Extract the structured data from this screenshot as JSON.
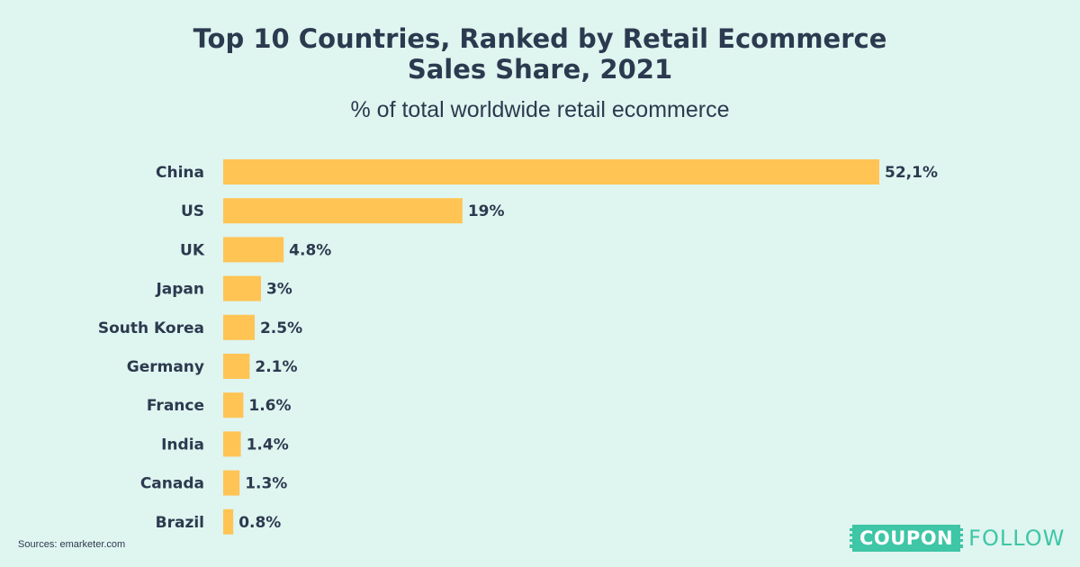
{
  "title_line1": "Top 10 Countries, Ranked by Retail Ecommerce",
  "title_line2": "Sales Share, 2021",
  "subtitle": "% of total worldwide retail ecommerce",
  "sources": "Sources: emarketer.com",
  "logo": {
    "box_text": "COUPON",
    "text": "FOLLOW"
  },
  "colors": {
    "bar": "#ffc454",
    "background": "#dff5f0",
    "text": "#2c3a4f",
    "brand": "#3ec6a6"
  },
  "chart_data": {
    "type": "bar",
    "orientation": "horizontal",
    "categories": [
      "China",
      "US",
      "UK",
      "Japan",
      "South Korea",
      "Germany",
      "France",
      "India",
      "Canada",
      "Brazil"
    ],
    "values": [
      52.1,
      19,
      4.8,
      3,
      2.5,
      2.1,
      1.6,
      1.4,
      1.3,
      0.8
    ],
    "value_labels": [
      "52,1%",
      "19%",
      "4.8%",
      "3%",
      "2.5%",
      "2.1%",
      "1.6%",
      "1.4%",
      "1.3%",
      "0.8%"
    ],
    "title": "Top 10 Countries, Ranked by Retail Ecommerce Sales Share, 2021",
    "subtitle": "% of total worldwide retail ecommerce",
    "grid": false
  }
}
